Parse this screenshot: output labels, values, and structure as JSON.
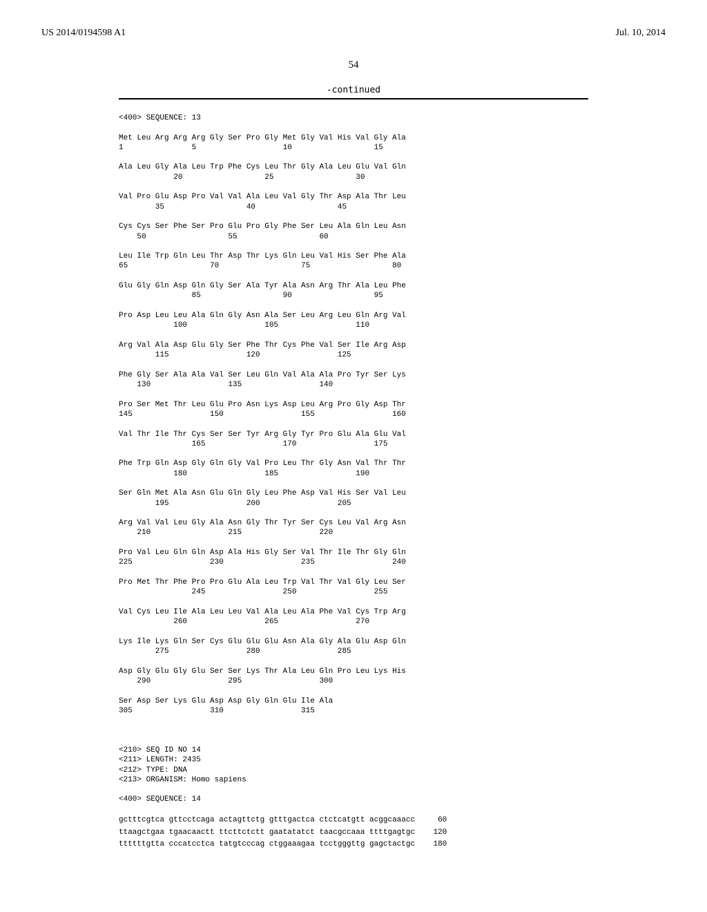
{
  "header": {
    "left": "US 2014/0194598 A1",
    "right": "Jul. 10, 2014"
  },
  "page_number": "54",
  "continued_label": "-continued",
  "seq_header": "<400> SEQUENCE: 13",
  "protein_rows": [
    {
      "aa": "Met Leu Arg Arg Arg Gly Ser Pro Gly Met Gly Val His Val Gly Ala",
      "nums": "1               5                   10                  15"
    },
    {
      "aa": "Ala Leu Gly Ala Leu Trp Phe Cys Leu Thr Gly Ala Leu Glu Val Gln",
      "nums": "            20                  25                  30"
    },
    {
      "aa": "Val Pro Glu Asp Pro Val Val Ala Leu Val Gly Thr Asp Ala Thr Leu",
      "nums": "        35                  40                  45"
    },
    {
      "aa": "Cys Cys Ser Phe Ser Pro Glu Pro Gly Phe Ser Leu Ala Gln Leu Asn",
      "nums": "    50                  55                  60"
    },
    {
      "aa": "Leu Ile Trp Gln Leu Thr Asp Thr Lys Gln Leu Val His Ser Phe Ala",
      "nums": "65                  70                  75                  80"
    },
    {
      "aa": "Glu Gly Gln Asp Gln Gly Ser Ala Tyr Ala Asn Arg Thr Ala Leu Phe",
      "nums": "                85                  90                  95"
    },
    {
      "aa": "Pro Asp Leu Leu Ala Gln Gly Asn Ala Ser Leu Arg Leu Gln Arg Val",
      "nums": "            100                 105                 110"
    },
    {
      "aa": "Arg Val Ala Asp Glu Gly Ser Phe Thr Cys Phe Val Ser Ile Arg Asp",
      "nums": "        115                 120                 125"
    },
    {
      "aa": "Phe Gly Ser Ala Ala Val Ser Leu Gln Val Ala Ala Pro Tyr Ser Lys",
      "nums": "    130                 135                 140"
    },
    {
      "aa": "Pro Ser Met Thr Leu Glu Pro Asn Lys Asp Leu Arg Pro Gly Asp Thr",
      "nums": "145                 150                 155                 160"
    },
    {
      "aa": "Val Thr Ile Thr Cys Ser Ser Tyr Arg Gly Tyr Pro Glu Ala Glu Val",
      "nums": "                165                 170                 175"
    },
    {
      "aa": "Phe Trp Gln Asp Gly Gln Gly Val Pro Leu Thr Gly Asn Val Thr Thr",
      "nums": "            180                 185                 190"
    },
    {
      "aa": "Ser Gln Met Ala Asn Glu Gln Gly Leu Phe Asp Val His Ser Val Leu",
      "nums": "        195                 200                 205"
    },
    {
      "aa": "Arg Val Val Leu Gly Ala Asn Gly Thr Tyr Ser Cys Leu Val Arg Asn",
      "nums": "    210                 215                 220"
    },
    {
      "aa": "Pro Val Leu Gln Gln Asp Ala His Gly Ser Val Thr Ile Thr Gly Gln",
      "nums": "225                 230                 235                 240"
    },
    {
      "aa": "Pro Met Thr Phe Pro Pro Glu Ala Leu Trp Val Thr Val Gly Leu Ser",
      "nums": "                245                 250                 255"
    },
    {
      "aa": "Val Cys Leu Ile Ala Leu Leu Val Ala Leu Ala Phe Val Cys Trp Arg",
      "nums": "            260                 265                 270"
    },
    {
      "aa": "Lys Ile Lys Gln Ser Cys Glu Glu Glu Asn Ala Gly Ala Glu Asp Gln",
      "nums": "        275                 280                 285"
    },
    {
      "aa": "Asp Gly Glu Gly Glu Ser Ser Lys Thr Ala Leu Gln Pro Leu Lys His",
      "nums": "    290                 295                 300"
    },
    {
      "aa": "Ser Asp Ser Lys Glu Asp Asp Gly Gln Glu Ile Ala",
      "nums": "305                 310                 315"
    }
  ],
  "seq14_meta": [
    "<210> SEQ ID NO 14",
    "<211> LENGTH: 2435",
    "<212> TYPE: DNA",
    "<213> ORGANISM: Homo sapiens"
  ],
  "seq14_header": "<400> SEQUENCE: 14",
  "nucleotide_rows": [
    {
      "seq": "gctttcgtca gttcctcaga actagttctg gtttgactca ctctcatgtt acggcaaacc",
      "pos": "60"
    },
    {
      "seq": "ttaagctgaa tgaacaactt ttcttctctt gaatatatct taacgccaaa ttttgagtgc",
      "pos": "120"
    },
    {
      "seq": "ttttttgtta cccatcctca tatgtcccag ctggaaagaa tcctgggttg gagctactgc",
      "pos": "180"
    }
  ]
}
